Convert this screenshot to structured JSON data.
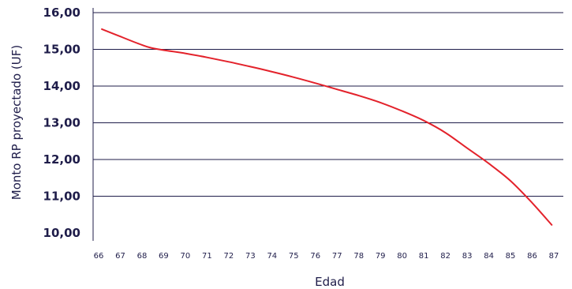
{
  "chart_data": {
    "type": "line",
    "title": "",
    "xlabel": "Edad",
    "ylabel": "Monto RP proyectado (UF)",
    "x_ticks": [
      "66",
      "67",
      "68",
      "69",
      "70",
      "71",
      "72",
      "73",
      "74",
      "75",
      "76",
      "77",
      "78",
      "79",
      "80",
      "81",
      "82",
      "83",
      "84",
      "85",
      "86",
      "87"
    ],
    "y_ticks": [
      "10,00",
      "11,00",
      "12,00",
      "13,00",
      "14,00",
      "15,00",
      "16,00"
    ],
    "xlim": [
      66,
      87
    ],
    "ylim": [
      10,
      16
    ],
    "grid": "horizontal",
    "legend": "none",
    "series": [
      {
        "color": "#e3222b",
        "x": [
          66.15,
          67,
          68,
          68.6,
          70,
          71,
          72,
          73,
          74,
          75,
          76,
          77,
          78,
          79,
          80,
          81,
          82,
          83,
          84,
          85,
          86,
          86.9
        ],
        "y": [
          15.55,
          15.35,
          15.12,
          15.02,
          14.89,
          14.78,
          14.66,
          14.53,
          14.39,
          14.24,
          14.08,
          13.91,
          13.74,
          13.55,
          13.32,
          13.06,
          12.73,
          12.31,
          11.89,
          11.42,
          10.82,
          10.22
        ]
      }
    ]
  }
}
